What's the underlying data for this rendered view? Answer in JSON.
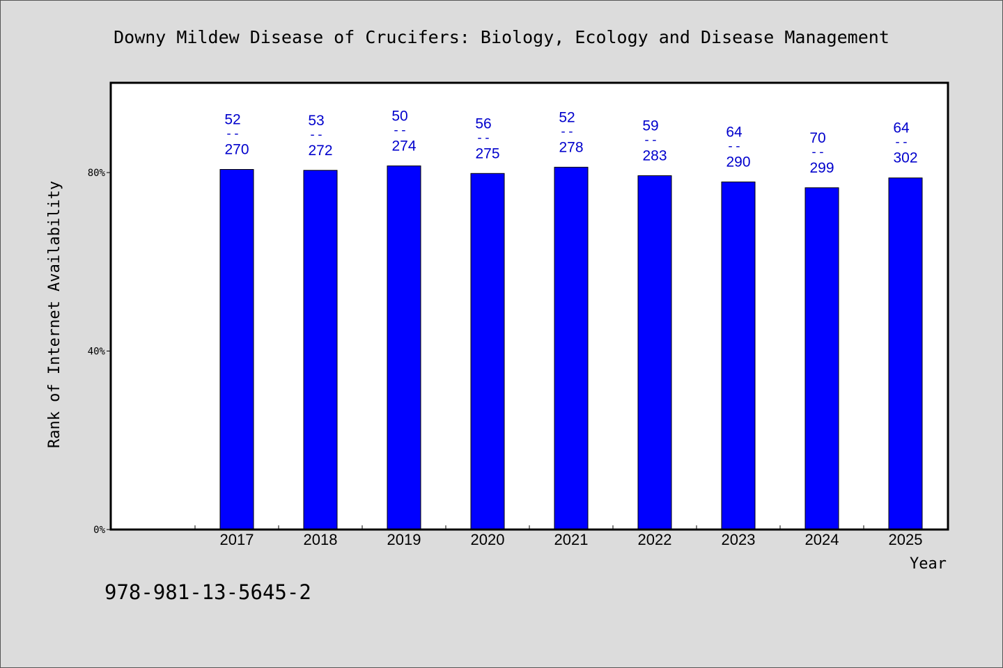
{
  "colors": {
    "background": "#dcdcdc",
    "plot_bg": "#ffffff",
    "bar": "#0000ff",
    "label": "#0000cc"
  },
  "isbn": "978-981-13-5645-2",
  "chart_data": {
    "type": "bar",
    "title": "Downy Mildew Disease of Crucifers: Biology, Ecology and Disease Management",
    "xlabel": "Year",
    "ylabel": "Rank of Internet Availability",
    "ylim": [
      0,
      100
    ],
    "yticks": [
      {
        "value": 0,
        "label": "0%"
      },
      {
        "value": 40,
        "label": "40%"
      },
      {
        "value": 80,
        "label": "80%"
      }
    ],
    "categories": [
      "2017",
      "2018",
      "2019",
      "2020",
      "2021",
      "2022",
      "2023",
      "2024",
      "2025"
    ],
    "values": [
      80.7,
      80.5,
      81.5,
      79.8,
      81.2,
      79.3,
      77.9,
      76.6,
      78.8
    ],
    "ranks": [
      "52",
      "53",
      "50",
      "56",
      "52",
      "59",
      "64",
      "70",
      "64"
    ],
    "totals": [
      "270",
      "272",
      "274",
      "275",
      "278",
      "283",
      "290",
      "299",
      "302"
    ],
    "separator": "--",
    "grid": false,
    "legend": "none"
  }
}
